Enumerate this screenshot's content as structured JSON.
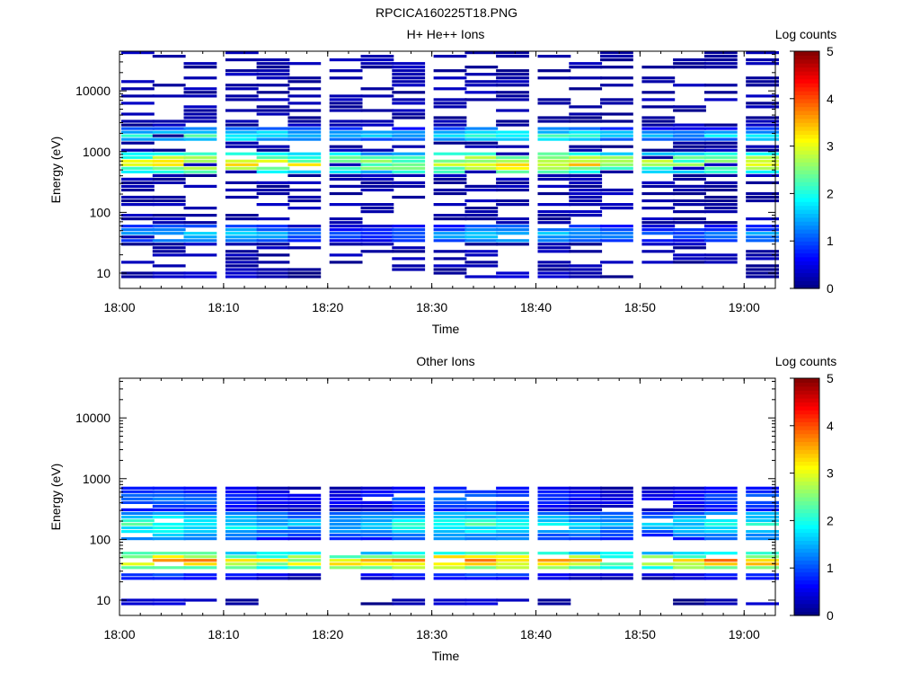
{
  "figure_title": "RPCICA160225T18.PNG",
  "chart_data": [
    {
      "type": "heatmap",
      "title": "H+ He++ Ions",
      "xlabel": "Time",
      "ylabel": "Energy (eV)",
      "x_start": "18:00",
      "x_end": "19:03",
      "x_ticks": [
        "18:00",
        "18:10",
        "18:20",
        "18:30",
        "18:40",
        "18:50",
        "19:00"
      ],
      "ylim": [
        5.6,
        45000
      ],
      "y_scale": "log",
      "y_ticks": [
        10,
        100,
        1000,
        10000
      ],
      "y_tick_labels": [
        "10",
        "100",
        "1000",
        "10000"
      ],
      "time_bins": [
        "18:00",
        "18:03",
        "18:06",
        "18:10",
        "18:13",
        "18:16",
        "18:20",
        "18:23",
        "18:26",
        "18:30",
        "18:33",
        "18:36",
        "18:40",
        "18:43",
        "18:46",
        "18:50",
        "18:53",
        "18:56",
        "19:00"
      ],
      "colorbar": {
        "label": "Log counts",
        "range": [
          0,
          5
        ],
        "ticks": [
          "0",
          "1",
          "2",
          "3",
          "4",
          "5"
        ]
      },
      "bands": [
        {
          "emin": 10,
          "emax": 45000,
          "sparse_log_counts": 0.3,
          "description": "sparse single-count lines above 2.5 keV"
        },
        {
          "emin": 1400,
          "emax": 2400,
          "peak_log_counts": 2.0
        },
        {
          "emin": 400,
          "emax": 1000,
          "peak_log_counts": 3.3
        },
        {
          "emin": 30,
          "emax": 60,
          "peak_log_counts": 1.5
        },
        {
          "emin": 8,
          "emax": 10,
          "peak_log_counts": 0.2
        }
      ]
    },
    {
      "type": "heatmap",
      "title": "Other Ions",
      "xlabel": "Time",
      "ylabel": "Energy (eV)",
      "x_start": "18:00",
      "x_end": "19:03",
      "x_ticks": [
        "18:00",
        "18:10",
        "18:20",
        "18:30",
        "18:40",
        "18:50",
        "19:00"
      ],
      "ylim": [
        5.6,
        45000
      ],
      "y_scale": "log",
      "y_ticks": [
        10,
        100,
        1000,
        10000
      ],
      "y_tick_labels": [
        "10",
        "100",
        "1000",
        "10000"
      ],
      "time_bins": [
        "18:00",
        "18:03",
        "18:06",
        "18:10",
        "18:13",
        "18:16",
        "18:20",
        "18:23",
        "18:26",
        "18:30",
        "18:33",
        "18:36",
        "18:40",
        "18:43",
        "18:46",
        "18:50",
        "18:53",
        "18:56",
        "19:00"
      ],
      "colorbar": {
        "label": "Log counts",
        "range": [
          0,
          5
        ],
        "ticks": [
          "0",
          "1",
          "2",
          "3",
          "4",
          "5"
        ]
      },
      "bands": [
        {
          "emin": 300,
          "emax": 700,
          "peak_log_counts": 1.0
        },
        {
          "emin": 100,
          "emax": 300,
          "peak_log_counts": 2.0
        },
        {
          "emin": 30,
          "emax": 60,
          "peak_log_counts": 3.8
        },
        {
          "emin": 22,
          "emax": 28,
          "peak_log_counts": 0.8
        },
        {
          "emin": 8,
          "emax": 10,
          "peak_log_counts": 0.2
        }
      ]
    }
  ]
}
